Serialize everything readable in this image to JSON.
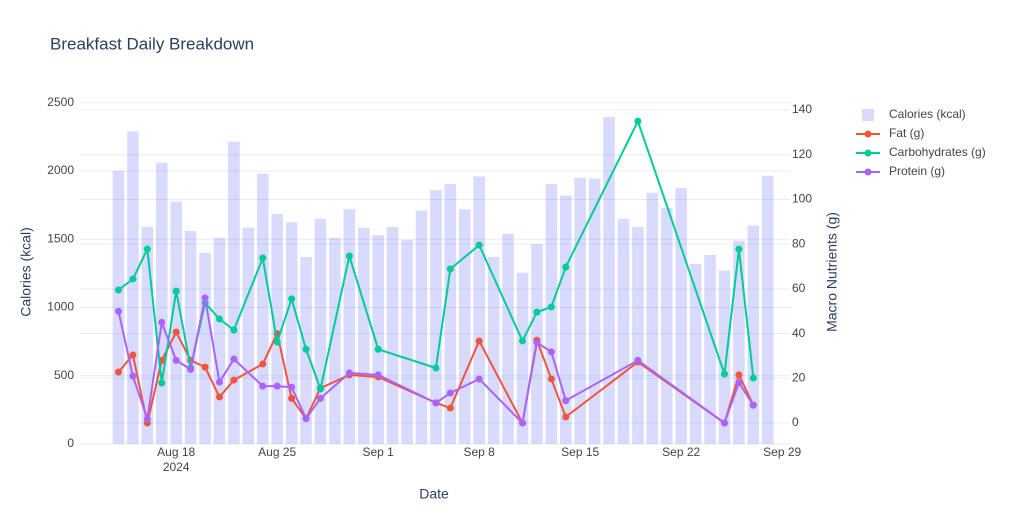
{
  "chart_data": {
    "type": "bar",
    "title": "Breakfast Daily Breakdown",
    "x_label": "Date",
    "y_label": "Calories (kcal)",
    "y2_label": "Macro Nutrients (g)",
    "xlim": [
      "2024-08-11 08:00",
      "2024-09-29 13:00"
    ],
    "xticks": [
      {
        "value": "2024-08-18",
        "label": "Aug 18\n2024"
      },
      {
        "value": "2024-08-25",
        "label": "Aug 25"
      },
      {
        "value": "2024-09-01",
        "label": "Sep 1"
      },
      {
        "value": "2024-09-08",
        "label": "Sep 8"
      },
      {
        "value": "2024-09-15",
        "label": "Sep 15"
      },
      {
        "value": "2024-09-22",
        "label": "Sep 22"
      },
      {
        "value": "2024-09-29",
        "label": "Sep 29"
      }
    ],
    "ylim": [
      0,
      2520
    ],
    "yticks": [
      0,
      500,
      1000,
      1500,
      2000,
      2500
    ],
    "y2lim": [
      -9.4,
      144.5
    ],
    "y2ticks": [
      0,
      20,
      40,
      60,
      80,
      100,
      120,
      140
    ],
    "grid": true,
    "series": [
      {
        "name": "Calories (kcal)",
        "type": "bar",
        "color": "#636efa",
        "x": [
          "2024-08-14",
          "2024-08-15",
          "2024-08-16",
          "2024-08-17",
          "2024-08-18",
          "2024-08-19",
          "2024-08-20",
          "2024-08-21",
          "2024-08-22",
          "2024-08-23",
          "2024-08-24",
          "2024-08-25",
          "2024-08-26",
          "2024-08-27",
          "2024-08-28",
          "2024-08-29",
          "2024-08-30",
          "2024-08-31",
          "2024-09-01",
          "2024-09-02",
          "2024-09-03",
          "2024-09-04",
          "2024-09-05",
          "2024-09-06",
          "2024-09-07",
          "2024-09-08",
          "2024-09-09",
          "2024-09-10",
          "2024-09-11",
          "2024-09-12",
          "2024-09-13",
          "2024-09-14",
          "2024-09-15",
          "2024-09-16",
          "2024-09-17",
          "2024-09-18",
          "2024-09-19",
          "2024-09-20",
          "2024-09-21",
          "2024-09-22",
          "2024-09-23",
          "2024-09-24",
          "2024-09-25",
          "2024-09-26",
          "2024-09-27",
          "2024-09-28"
        ],
        "values": [
          2000,
          2290,
          1590,
          2060,
          1775,
          1560,
          1400,
          1510,
          2215,
          1585,
          1980,
          1685,
          1625,
          1370,
          1650,
          1510,
          1720,
          1585,
          1530,
          1590,
          1495,
          1710,
          1860,
          1905,
          1720,
          1960,
          1370,
          1540,
          1255,
          1465,
          1905,
          1820,
          1950,
          1945,
          2395,
          1650,
          1590,
          1840,
          1730,
          1875,
          1320,
          1385,
          1270,
          1490,
          1600,
          1965
        ]
      },
      {
        "name": "Fat (g)",
        "type": "line",
        "axis": "y2",
        "color": "#EF553B",
        "x": [
          "2024-08-14",
          "2024-08-15",
          "2024-08-16",
          "2024-08-17",
          "2024-08-18",
          "2024-08-19",
          "2024-08-20",
          "2024-08-21",
          "2024-08-22",
          "2024-08-24",
          "2024-08-25",
          "2024-08-26",
          "2024-08-27",
          "2024-08-28",
          "2024-08-30",
          "2024-09-01",
          "2024-09-05",
          "2024-09-06",
          "2024-09-08",
          "2024-09-11",
          "2024-09-12",
          "2024-09-13",
          "2024-09-14",
          "2024-09-19",
          "2024-09-25",
          "2024-09-26",
          "2024-09-27"
        ],
        "values": [
          22.8,
          30.4,
          0,
          28,
          40.7,
          28,
          25,
          11.6,
          19.2,
          26.4,
          40,
          11,
          2,
          15.6,
          21.5,
          20.6,
          9,
          6.7,
          36.7,
          0,
          37,
          19.7,
          2.7,
          27.3,
          0,
          21.5,
          8
        ]
      },
      {
        "name": "Carbohydrates (g)",
        "type": "line",
        "axis": "y2",
        "color": "#00CC96",
        "x": [
          "2024-08-14",
          "2024-08-15",
          "2024-08-16",
          "2024-08-17",
          "2024-08-18",
          "2024-08-19",
          "2024-08-20",
          "2024-08-21",
          "2024-08-22",
          "2024-08-24",
          "2024-08-25",
          "2024-08-26",
          "2024-08-27",
          "2024-08-28",
          "2024-08-30",
          "2024-09-01",
          "2024-09-05",
          "2024-09-06",
          "2024-09-08",
          "2024-09-11",
          "2024-09-12",
          "2024-09-13",
          "2024-09-14",
          "2024-09-19",
          "2024-09-25",
          "2024-09-26",
          "2024-09-27"
        ],
        "values": [
          59.5,
          64.4,
          77.8,
          17.9,
          59,
          24.6,
          53.7,
          46.5,
          41.6,
          73.8,
          36.2,
          55.5,
          33,
          15.2,
          74.7,
          33,
          24.6,
          68.9,
          79.6,
          36.7,
          49.6,
          51.9,
          69.8,
          135,
          21.9,
          77.8,
          20.1
        ]
      },
      {
        "name": "Protein (g)",
        "type": "line",
        "axis": "y2",
        "color": "#AB63FA",
        "x": [
          "2024-08-14",
          "2024-08-15",
          "2024-08-16",
          "2024-08-17",
          "2024-08-18",
          "2024-08-19",
          "2024-08-20",
          "2024-08-21",
          "2024-08-22",
          "2024-08-24",
          "2024-08-25",
          "2024-08-26",
          "2024-08-27",
          "2024-08-28",
          "2024-08-30",
          "2024-09-01",
          "2024-09-05",
          "2024-09-06",
          "2024-09-08",
          "2024-09-11",
          "2024-09-12",
          "2024-09-13",
          "2024-09-14",
          "2024-09-19",
          "2024-09-25",
          "2024-09-26",
          "2024-09-27"
        ],
        "values": [
          50,
          21,
          1.8,
          45,
          28,
          24,
          56,
          18.3,
          28.6,
          16.5,
          16.5,
          16,
          2,
          11,
          22.4,
          21.5,
          9,
          13.4,
          19.7,
          0,
          36,
          31.8,
          10,
          28,
          0,
          18,
          8
        ]
      }
    ]
  }
}
